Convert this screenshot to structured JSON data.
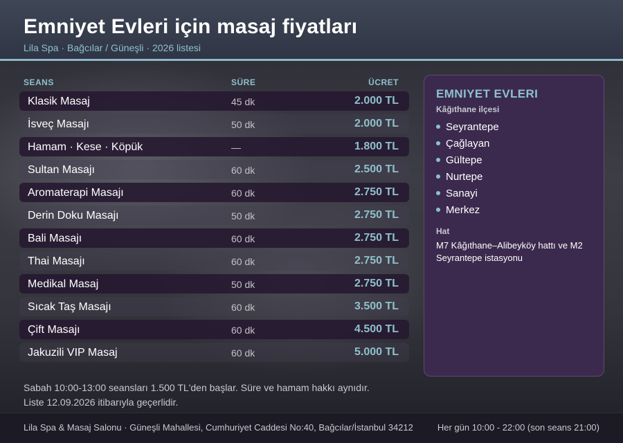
{
  "header": {
    "title": "Emniyet Evleri için masaj fiyatları",
    "subtitle": "Lila Spa · Bağcılar / Güneşli · 2026 listesi"
  },
  "table": {
    "columns": {
      "session": "SEANS",
      "duration": "SÜRE",
      "price": "ÜCRET"
    },
    "rows": [
      {
        "name": "Klasik Masaj",
        "duration": "45 dk",
        "price": "2.000 TL"
      },
      {
        "name": "İsveç Masajı",
        "duration": "50 dk",
        "price": "2.000 TL"
      },
      {
        "name": "Hamam · Kese · Köpük",
        "duration": "—",
        "price": "1.800 TL"
      },
      {
        "name": "Sultan Masajı",
        "duration": "60 dk",
        "price": "2.500 TL"
      },
      {
        "name": "Aromaterapi Masajı",
        "duration": "60 dk",
        "price": "2.750 TL"
      },
      {
        "name": "Derin Doku Masajı",
        "duration": "50 dk",
        "price": "2.750 TL"
      },
      {
        "name": "Bali Masajı",
        "duration": "60 dk",
        "price": "2.750 TL"
      },
      {
        "name": "Thai Masajı",
        "duration": "60 dk",
        "price": "2.750 TL"
      },
      {
        "name": "Medikal Masaj",
        "duration": "50 dk",
        "price": "2.750 TL"
      },
      {
        "name": "Sıcak Taş Masajı",
        "duration": "60 dk",
        "price": "3.500 TL"
      },
      {
        "name": "Çift Masajı",
        "duration": "60 dk",
        "price": "4.500 TL"
      },
      {
        "name": "Jakuzili VIP Masaj",
        "duration": "60 dk",
        "price": "5.000 TL"
      }
    ]
  },
  "sidebar": {
    "title": "EMNIYET EVLERI",
    "district": "Kâğıthane ilçesi",
    "neighborhoods": [
      "Seyrantepe",
      "Çağlayan",
      "Gültepe",
      "Nurtepe",
      "Sanayi",
      "Merkez"
    ],
    "transit_label": "Hat",
    "transit_text": "M7 Kâğıthane–Alibeyköy hattı ve M2 Seyrantepe istasyonu"
  },
  "notes": {
    "line1": "Sabah 10:00-13:00 seansları 1.500 TL'den başlar. Süre ve hamam hakkı aynıdır.",
    "line2": "Liste 12.09.2026 itibarıyla geçerlidir."
  },
  "footer": {
    "address": "Lila Spa & Masaj Salonu · Güneşli Mahallesi, Cumhuriyet Caddesi No:40, Bağcılar/İstanbul 34212",
    "hours": "Her gün 10:00 - 22:00 (son seans 21:00)"
  },
  "colors": {
    "accent": "#8fc0cc",
    "header_bg": "#3f4656",
    "sidebar_bg": "#3b2a4e",
    "row_dark": "#261830"
  }
}
